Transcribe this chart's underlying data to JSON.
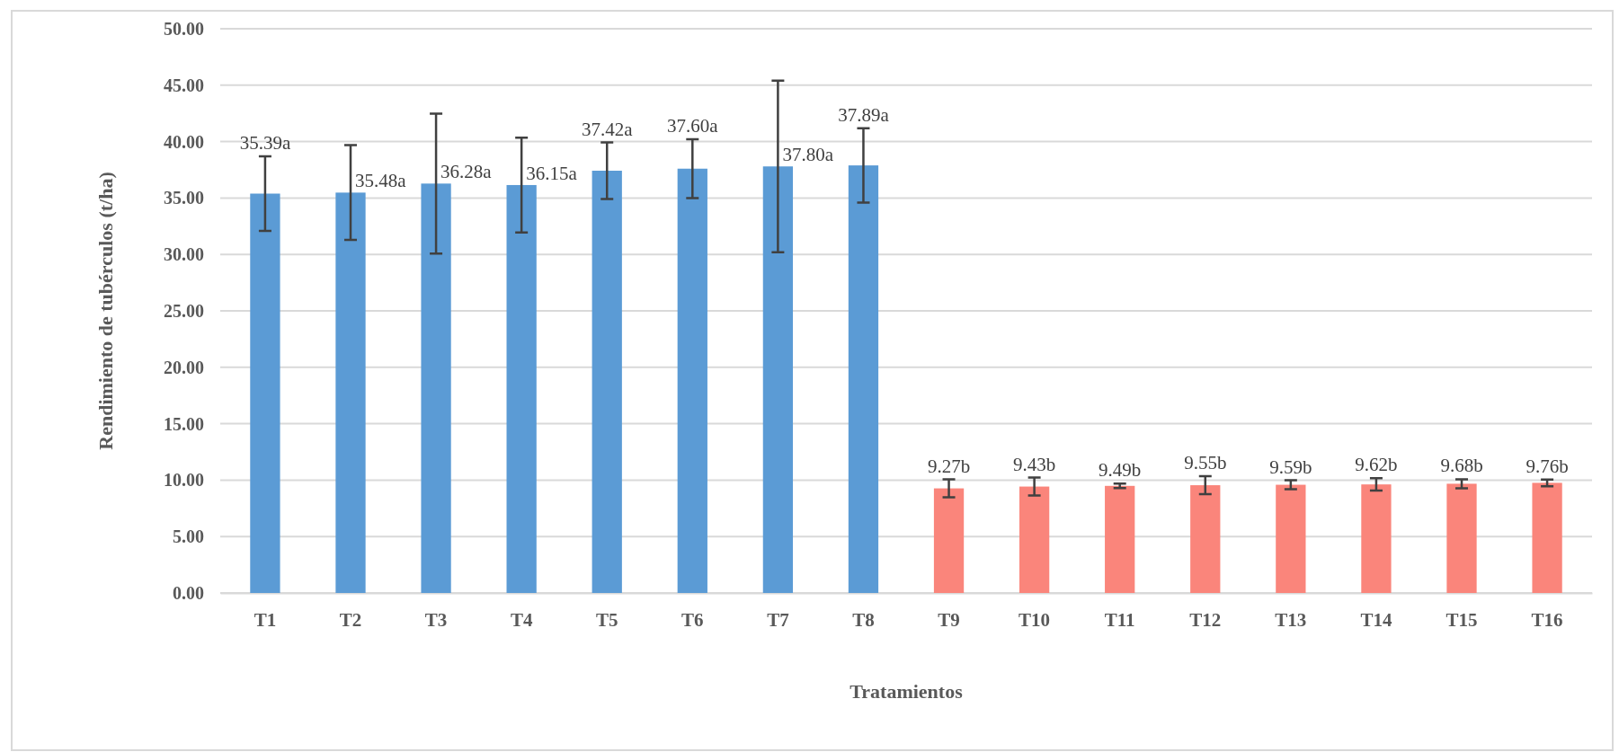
{
  "chart_data": {
    "type": "bar",
    "xlabel": "Tratamientos",
    "ylabel": "Rendimiento de tubérculos (t/ha)",
    "categories": [
      "T1",
      "T2",
      "T3",
      "T4",
      "T5",
      "T6",
      "T7",
      "T8",
      "T9",
      "T10",
      "T11",
      "T12",
      "T13",
      "T14",
      "T15",
      "T16"
    ],
    "values": [
      35.39,
      35.48,
      36.28,
      36.15,
      37.42,
      37.6,
      37.8,
      37.89,
      9.27,
      9.43,
      9.49,
      9.55,
      9.59,
      9.62,
      9.68,
      9.76
    ],
    "colors": [
      "#5b9bd5",
      "#5b9bd5",
      "#5b9bd5",
      "#5b9bd5",
      "#5b9bd5",
      "#5b9bd5",
      "#5b9bd5",
      "#5b9bd5",
      "#fa857b",
      "#fa857b",
      "#fa857b",
      "#fa857b",
      "#fa857b",
      "#fa857b",
      "#fa857b",
      "#fa857b"
    ],
    "errors": [
      3.3,
      4.2,
      6.2,
      4.2,
      2.5,
      2.6,
      7.6,
      3.3,
      0.8,
      0.8,
      0.2,
      0.8,
      0.4,
      0.55,
      0.4,
      0.3
    ],
    "value_labels": [
      "35.39a",
      "35.48a",
      "36.28a",
      "36.15a",
      "37.42a",
      "37.60a",
      "37.80a",
      "37.89a",
      "9.27b",
      "9.43b",
      "9.49b",
      "9.55b",
      "9.59b",
      "9.62b",
      "9.68b",
      "9.76b"
    ],
    "ylim": [
      0,
      50
    ],
    "yticks": [
      {
        "value": 0,
        "label": "0.00"
      },
      {
        "value": 5,
        "label": "5.00"
      },
      {
        "value": 10,
        "label": "10.00"
      },
      {
        "value": 15,
        "label": "15.00"
      },
      {
        "value": 20,
        "label": "20.00"
      },
      {
        "value": 25,
        "label": "25.00"
      },
      {
        "value": 30,
        "label": "30.00"
      },
      {
        "value": 35,
        "label": "35.00"
      },
      {
        "value": 40,
        "label": "40.00"
      },
      {
        "value": 45,
        "label": "45.00"
      },
      {
        "value": 50,
        "label": "50.00"
      }
    ],
    "grid": "y"
  }
}
